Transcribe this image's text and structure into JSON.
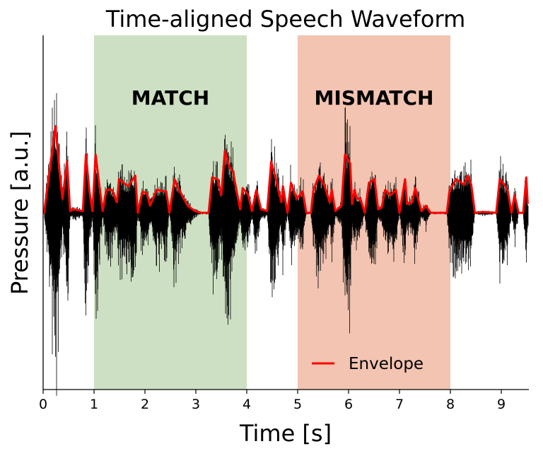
{
  "chart_data": {
    "type": "line",
    "title": "Time-aligned Speech Waveform",
    "xlabel": "Time [s]",
    "ylabel": "Pressure [a.u.]",
    "xlim": [
      0,
      9.55
    ],
    "ylim": [
      -1,
      1
    ],
    "xticks": [
      0,
      1,
      2,
      3,
      4,
      5,
      6,
      7,
      8,
      9
    ],
    "yticks": [],
    "grid": false,
    "legend": {
      "placement": "bottom-right",
      "entries": [
        "Envelope"
      ]
    },
    "spans": [
      {
        "label": "MATCH",
        "start": 1,
        "end": 4,
        "color": "#cde0c3"
      },
      {
        "label": "MISMATCH",
        "start": 5,
        "end": 8,
        "color": "#f2c4b1"
      }
    ],
    "series": [
      {
        "name": "Envelope",
        "color": "#ff0000",
        "points": [
          [
            0.0,
            0.0
          ],
          [
            0.02,
            0.0
          ],
          [
            0.24,
            0.49
          ],
          [
            0.33,
            0.21
          ],
          [
            0.38,
            0.08
          ],
          [
            0.47,
            0.29
          ],
          [
            0.53,
            0.01
          ],
          [
            0.6,
            0.02
          ],
          [
            0.78,
            0.01
          ],
          [
            0.84,
            0.33
          ],
          [
            0.91,
            0.12
          ],
          [
            0.97,
            0.01
          ],
          [
            1.03,
            0.33
          ],
          [
            1.12,
            0.12
          ],
          [
            1.17,
            0.01
          ],
          [
            1.24,
            0.13
          ],
          [
            1.35,
            0.13
          ],
          [
            1.45,
            0.06
          ],
          [
            1.49,
            0.19
          ],
          [
            1.67,
            0.15
          ],
          [
            1.81,
            0.21
          ],
          [
            1.86,
            0.0
          ],
          [
            1.95,
            0.12
          ],
          [
            2.04,
            0.11
          ],
          [
            2.1,
            0.04
          ],
          [
            2.23,
            0.13
          ],
          [
            2.42,
            0.12
          ],
          [
            2.48,
            0.0
          ],
          [
            2.58,
            0.19
          ],
          [
            2.65,
            0.14
          ],
          [
            2.84,
            0.04
          ],
          [
            2.98,
            0.01
          ],
          [
            3.11,
            0.0
          ],
          [
            3.25,
            0.0
          ],
          [
            3.32,
            0.2
          ],
          [
            3.43,
            0.19
          ],
          [
            3.5,
            0.1
          ],
          [
            3.57,
            0.35
          ],
          [
            3.66,
            0.26
          ],
          [
            3.73,
            0.23
          ],
          [
            3.87,
            0.02
          ],
          [
            3.92,
            0.14
          ],
          [
            4.03,
            0.1
          ],
          [
            4.1,
            0.01
          ],
          [
            4.19,
            0.13
          ],
          [
            4.28,
            0.02
          ],
          [
            4.4,
            0.01
          ],
          [
            4.48,
            0.29
          ],
          [
            4.59,
            0.17
          ],
          [
            4.68,
            0.06
          ],
          [
            4.71,
            0.15
          ],
          [
            4.8,
            0.0
          ],
          [
            4.87,
            0.17
          ],
          [
            4.98,
            0.08
          ],
          [
            5.1,
            0.12
          ],
          [
            5.17,
            0.0
          ],
          [
            5.26,
            0.0
          ],
          [
            5.31,
            0.13
          ],
          [
            5.42,
            0.21
          ],
          [
            5.53,
            0.15
          ],
          [
            5.63,
            0.06
          ],
          [
            5.67,
            0.13
          ],
          [
            5.74,
            0.01
          ],
          [
            5.86,
            0.04
          ],
          [
            5.93,
            0.33
          ],
          [
            6.03,
            0.28
          ],
          [
            6.07,
            0.05
          ],
          [
            6.12,
            0.13
          ],
          [
            6.16,
            0.08
          ],
          [
            6.23,
            0.08
          ],
          [
            6.32,
            0.0
          ],
          [
            6.4,
            0.17
          ],
          [
            6.51,
            0.19
          ],
          [
            6.58,
            0.02
          ],
          [
            6.65,
            0.03
          ],
          [
            6.72,
            0.13
          ],
          [
            6.83,
            0.1
          ],
          [
            6.93,
            0.13
          ],
          [
            7.0,
            0.0
          ],
          [
            7.11,
            0.19
          ],
          [
            7.15,
            0.05
          ],
          [
            7.25,
            0.06
          ],
          [
            7.31,
            0.14
          ],
          [
            7.43,
            0.01
          ],
          [
            7.52,
            0.04
          ],
          [
            7.61,
            0.0
          ],
          [
            7.93,
            0.0
          ],
          [
            7.98,
            0.12
          ],
          [
            8.11,
            0.19
          ],
          [
            8.27,
            0.16
          ],
          [
            8.34,
            0.21
          ],
          [
            8.41,
            0.16
          ],
          [
            8.48,
            0.0
          ],
          [
            8.64,
            0.005
          ],
          [
            8.9,
            0.0
          ],
          [
            8.97,
            0.19
          ],
          [
            9.06,
            0.16
          ],
          [
            9.13,
            0.12
          ],
          [
            9.2,
            0.0
          ],
          [
            9.26,
            0.1
          ],
          [
            9.34,
            0.0
          ],
          [
            9.43,
            0.0
          ],
          [
            9.49,
            0.2
          ],
          [
            9.52,
            0.05
          ]
        ]
      },
      {
        "name": "",
        "color": "#000000",
        "description_of_values": "speech pressure waveform bounded by the envelope"
      }
    ]
  }
}
